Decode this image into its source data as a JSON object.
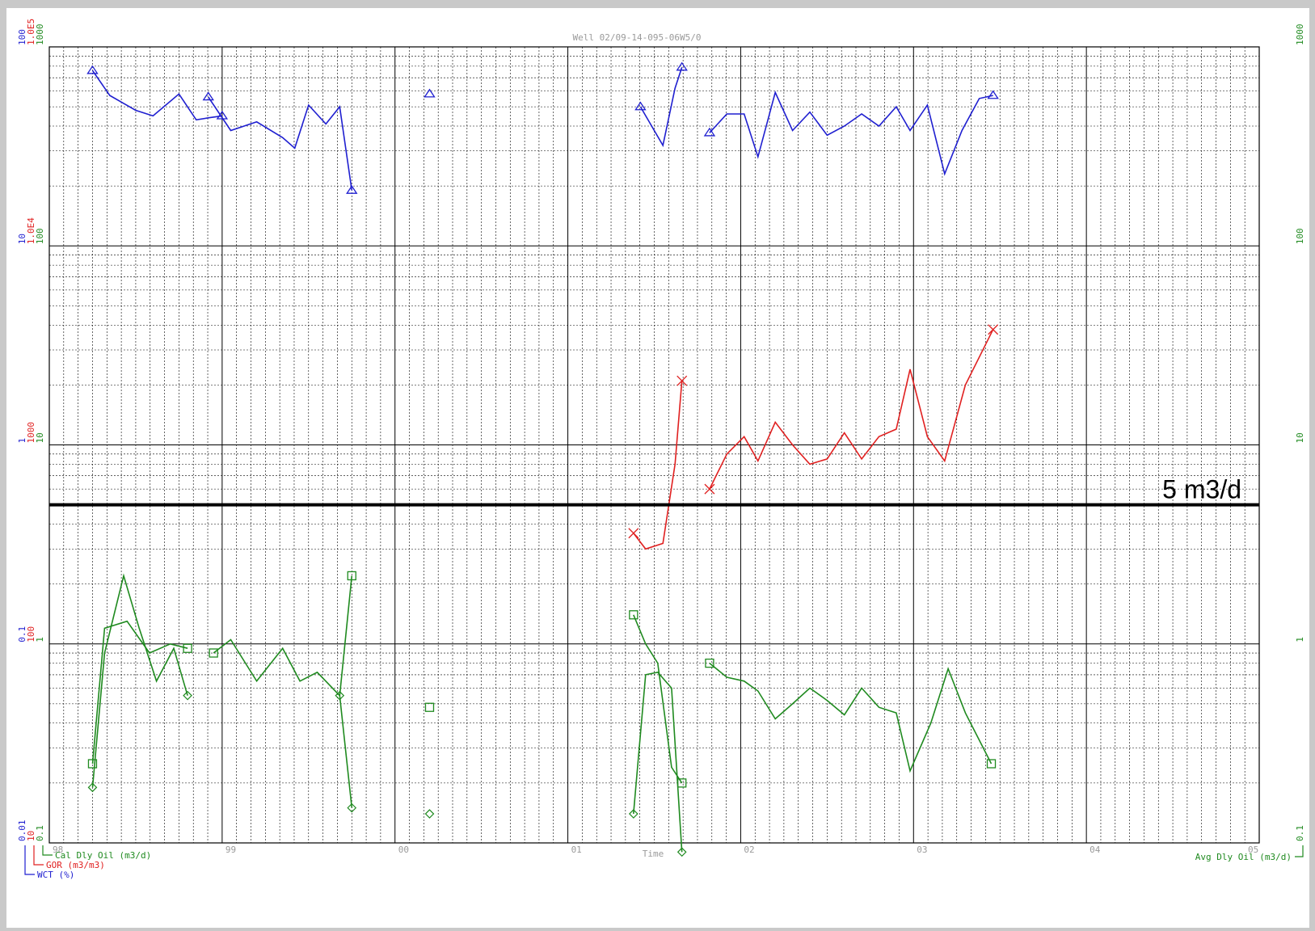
{
  "colors": {
    "wct": "#1f1fd0",
    "gor": "#e02020",
    "oil": "#1f8a1f",
    "grid": "#000000",
    "title": "#9a9a9a",
    "threshold": "#000000"
  },
  "chart_data": {
    "type": "line",
    "title": "Well 02/09-14-095-06W5/0",
    "xlabel": "Time",
    "x_tick_labels": [
      "98",
      "99",
      "00",
      "01",
      "02",
      "03",
      "04",
      "05"
    ],
    "xlim": [
      1998.0,
      2005.0
    ],
    "axes": {
      "wct": {
        "label": "WCT (%)",
        "ticks": [
          "0.01",
          "0.1",
          "1",
          "10",
          "100"
        ],
        "ylim": [
          0.01,
          100
        ],
        "scale": "log"
      },
      "gor": {
        "label": "GOR (m3/m3)",
        "ticks": [
          "10",
          "100",
          "1000",
          "1.0E4",
          "1.0E5"
        ],
        "ylim": [
          10,
          100000
        ],
        "scale": "log"
      },
      "cal_oil": {
        "label": "Cal Dly Oil (m3/d)",
        "ticks": [
          "0.1",
          "1",
          "10",
          "100",
          "1000"
        ],
        "ylim": [
          0.1,
          1000
        ],
        "scale": "log"
      },
      "avg_oil": {
        "label": "Avg Dly Oil (m3/d)",
        "ticks": [
          "0.1",
          "1",
          "10",
          "100",
          "1000"
        ],
        "ylim": [
          0.1,
          1000
        ],
        "scale": "log"
      }
    },
    "threshold": {
      "label": "5 m3/d",
      "value": 5
    },
    "grid": true,
    "series": [
      {
        "name": "WCT (%)",
        "axis": "wct",
        "color": "#1f1fd0",
        "marker": "triangle",
        "segments": [
          [
            [
              1998.25,
              76
            ],
            [
              1998.35,
              57
            ],
            [
              1998.5,
              48
            ],
            [
              1998.6,
              45
            ],
            [
              1998.75,
              58
            ],
            [
              1998.85,
              43
            ],
            [
              1998.92,
              44
            ],
            [
              1999.0,
              45
            ]
          ],
          [
            [
              1998.92,
              56
            ],
            [
              1999.05,
              38
            ],
            [
              1999.2,
              42
            ],
            [
              1999.35,
              35
            ],
            [
              1999.42,
              31
            ],
            [
              1999.5,
              51
            ],
            [
              1999.6,
              41
            ],
            [
              1999.68,
              50
            ],
            [
              1999.75,
              19
            ]
          ],
          [
            [
              2000.2,
              58
            ]
          ],
          [
            [
              2001.42,
              50
            ],
            [
              2001.55,
              32
            ],
            [
              2001.62,
              62
            ],
            [
              2001.66,
              79
            ]
          ],
          [
            [
              2001.82,
              37
            ],
            [
              2001.92,
              46
            ],
            [
              2002.02,
              46
            ],
            [
              2002.1,
              28
            ],
            [
              2002.2,
              59
            ],
            [
              2002.3,
              38
            ],
            [
              2002.4,
              47
            ],
            [
              2002.5,
              36
            ],
            [
              2002.6,
              40
            ],
            [
              2002.7,
              46
            ],
            [
              2002.8,
              40
            ],
            [
              2002.9,
              50
            ],
            [
              2002.98,
              38
            ],
            [
              2003.08,
              51
            ],
            [
              2003.18,
              23
            ],
            [
              2003.28,
              38
            ],
            [
              2003.38,
              55
            ],
            [
              2003.46,
              57
            ]
          ]
        ]
      },
      {
        "name": "GOR (m3/m3)",
        "axis": "gor",
        "color": "#e02020",
        "marker": "x",
        "segments": [
          [
            [
              2001.38,
              360
            ],
            [
              2001.45,
              300
            ],
            [
              2001.55,
              320
            ],
            [
              2001.62,
              800
            ],
            [
              2001.66,
              2100
            ]
          ],
          [
            [
              2001.82,
              600
            ],
            [
              2001.92,
              900
            ],
            [
              2002.02,
              1100
            ],
            [
              2002.1,
              830
            ],
            [
              2002.2,
              1300
            ],
            [
              2002.3,
              1000
            ],
            [
              2002.4,
              800
            ],
            [
              2002.5,
              850
            ],
            [
              2002.6,
              1150
            ],
            [
              2002.7,
              850
            ],
            [
              2002.8,
              1100
            ],
            [
              2002.9,
              1200
            ],
            [
              2002.98,
              2400
            ],
            [
              2003.08,
              1100
            ],
            [
              2003.18,
              830
            ],
            [
              2003.3,
              2000
            ],
            [
              2003.46,
              3800
            ]
          ]
        ]
      },
      {
        "name": "Cal Dly Oil (m3/d)",
        "axis": "cal_oil",
        "color": "#1f8a1f",
        "marker": "square",
        "segments": [
          [
            [
              1998.25,
              0.25
            ],
            [
              1998.32,
              1.2
            ],
            [
              1998.45,
              1.3
            ],
            [
              1998.58,
              0.9
            ],
            [
              1998.7,
              1.0
            ],
            [
              1998.8,
              0.95
            ]
          ],
          [
            [
              1998.95,
              0.9
            ],
            [
              1999.05,
              1.05
            ],
            [
              1999.2,
              0.65
            ],
            [
              1999.35,
              0.95
            ],
            [
              1999.45,
              0.65
            ],
            [
              1999.55,
              0.72
            ],
            [
              1999.68,
              0.55
            ],
            [
              1999.75,
              2.2
            ]
          ],
          [
            [
              2000.2,
              0.48
            ]
          ],
          [
            [
              2001.38,
              1.4
            ],
            [
              2001.45,
              1.0
            ],
            [
              2001.52,
              0.8
            ],
            [
              2001.6,
              0.24
            ],
            [
              2001.66,
              0.2
            ]
          ],
          [
            [
              2001.82,
              0.8
            ],
            [
              2001.92,
              0.68
            ],
            [
              2002.02,
              0.65
            ],
            [
              2002.1,
              0.58
            ],
            [
              2002.2,
              0.42
            ],
            [
              2002.3,
              0.5
            ],
            [
              2002.4,
              0.6
            ],
            [
              2002.5,
              0.52
            ],
            [
              2002.6,
              0.44
            ],
            [
              2002.7,
              0.6
            ],
            [
              2002.8,
              0.48
            ],
            [
              2002.9,
              0.45
            ],
            [
              2002.98,
              0.23
            ],
            [
              2003.1,
              0.4
            ],
            [
              2003.2,
              0.75
            ],
            [
              2003.3,
              0.45
            ],
            [
              2003.45,
              0.25
            ]
          ]
        ]
      },
      {
        "name": "Avg Dly Oil (m3/d)",
        "axis": "avg_oil",
        "color": "#1f8a1f",
        "marker": "diamond",
        "segments": [
          [
            [
              1998.25,
              0.19
            ],
            [
              1998.32,
              0.9
            ],
            [
              1998.43,
              2.2
            ],
            [
              1998.52,
              1.2
            ],
            [
              1998.62,
              0.65
            ],
            [
              1998.72,
              0.95
            ],
            [
              1998.8,
              0.55
            ]
          ],
          [
            [
              1999.68,
              0.55
            ],
            [
              1999.75,
              0.15
            ]
          ],
          [
            [
              2000.2,
              0.14
            ]
          ],
          [
            [
              2001.38,
              0.14
            ],
            [
              2001.45,
              0.7
            ],
            [
              2001.52,
              0.72
            ],
            [
              2001.6,
              0.6
            ],
            [
              2001.66,
              0.09
            ]
          ]
        ]
      }
    ]
  }
}
